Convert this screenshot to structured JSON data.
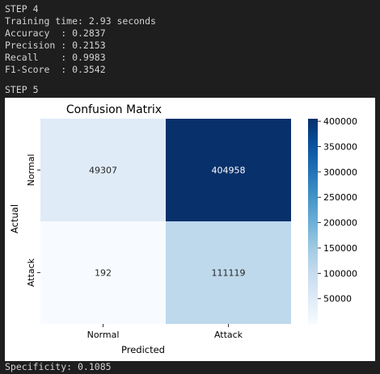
{
  "output": {
    "step4_header": "STEP 4",
    "training_time": "Training time: 2.93 seconds",
    "accuracy": "Accuracy  : 0.2837",
    "precision": "Precision : 0.2153",
    "recall": "Recall    : 0.9983",
    "f1": "F1-Score  : 0.3542",
    "step5_header": "STEP 5",
    "specificity": "Specificity: 0.1085"
  },
  "chart_data": {
    "type": "heatmap",
    "title": "Confusion Matrix",
    "xlabel": "Predicted",
    "ylabel": "Actual",
    "x_categories": [
      "Normal",
      "Attack"
    ],
    "y_categories": [
      "Normal",
      "Attack"
    ],
    "values": [
      [
        49307,
        404958
      ],
      [
        192,
        111119
      ]
    ],
    "colormap": "Blues",
    "colorbar": {
      "min": 192,
      "max": 404958,
      "ticks": [
        50000,
        100000,
        150000,
        200000,
        250000,
        300000,
        350000,
        400000
      ],
      "tick_labels": [
        "50000",
        "100000",
        "150000",
        "200000",
        "250000",
        "300000",
        "350000",
        "400000"
      ]
    }
  }
}
